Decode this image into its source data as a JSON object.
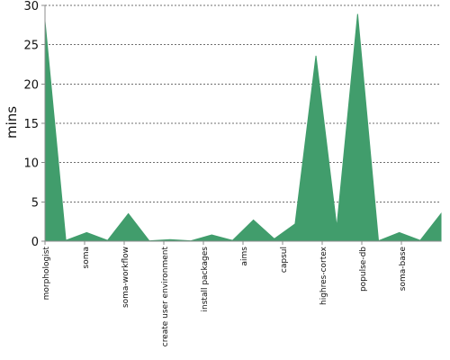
{
  "chart_data": {
    "type": "area",
    "title": "",
    "xlabel": "",
    "ylabel": "mins",
    "ylim": [
      0,
      30
    ],
    "y_ticks": [
      0,
      5,
      10,
      15,
      20,
      25,
      30
    ],
    "grid": true,
    "x_tick_labels": [
      "morphologist",
      "soma",
      "soma-workflow",
      "create user environment",
      "install packages",
      "aims",
      "capsul",
      "highres-cortex",
      "populse-db",
      "soma-base"
    ],
    "series": [
      {
        "color": "#419d6c",
        "values": [
          28,
          0.1,
          1.1,
          0.1,
          3.5,
          0.05,
          0.2,
          0.05,
          0.8,
          0.1,
          2.7,
          0.3,
          2.2,
          23.6,
          1.8,
          28.9,
          0.05,
          1.1,
          0.1,
          3.5
        ]
      }
    ]
  }
}
